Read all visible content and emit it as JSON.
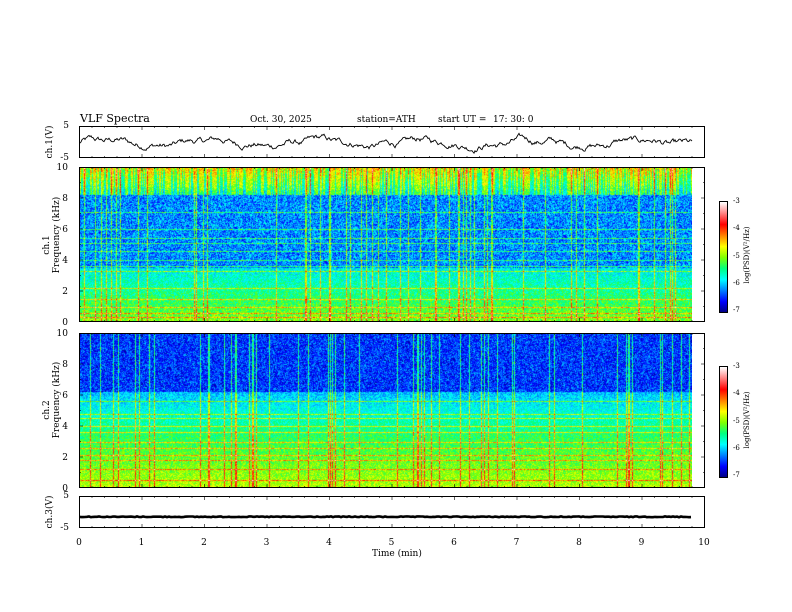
{
  "header": {
    "title": "VLF  Spectra",
    "date": "Oct. 30, 2025",
    "station": "station=ATH",
    "start_label": "start  UT  =",
    "start_time": "17: 30: 0"
  },
  "chart_data": [
    {
      "id": "ch1-waveform",
      "type": "line",
      "ylabel": "ch.1(V)",
      "ylim": [
        -5,
        5
      ],
      "yticks": [
        "5",
        "-5"
      ],
      "description_values": "noisy waveform roughly between -2 and 2 V",
      "x_range_min": [
        0,
        9.8
      ]
    },
    {
      "id": "ch1-spectrogram",
      "type": "heatmap",
      "ylabel": "ch.1\nFrequency  (kHz)",
      "ylabel_lines": [
        "ch.1",
        "Frequency  (kHz)"
      ],
      "ylim": [
        0,
        10
      ],
      "yticks": [
        "0",
        "2",
        "4",
        "6",
        "8",
        "10"
      ],
      "x_range_min": [
        0,
        9.8
      ],
      "bands_khz": [
        0.3,
        0.6,
        1.0,
        1.5,
        2.2,
        3.3,
        3.6,
        4.0,
        4.6,
        5.1,
        5.4,
        6.0,
        7.1
      ],
      "colorbar": {
        "label": "log(PSD)(V²/Hz)",
        "ticks": [
          "-3",
          "-4",
          "-5",
          "-6",
          "-7"
        ],
        "range": [
          -7,
          -3
        ]
      }
    },
    {
      "id": "ch2-spectrogram",
      "type": "heatmap",
      "ylabel_lines": [
        "ch.2",
        "Frequency  (kHz)"
      ],
      "ylim": [
        0,
        10
      ],
      "yticks": [
        "0",
        "2",
        "4",
        "6",
        "8",
        "10"
      ],
      "x_range_min": [
        0,
        9.8
      ],
      "bands_khz": [
        0.5,
        1.2,
        1.8,
        2.1,
        2.6,
        3.0,
        3.6,
        4.0,
        4.5,
        4.8,
        5.6
      ],
      "colorbar": {
        "label": "log(PSD)(V²/Hz)",
        "ticks": [
          "-3",
          "-4",
          "-5",
          "-6",
          "-7"
        ],
        "range": [
          -7,
          -3
        ]
      }
    },
    {
      "id": "ch3-waveform",
      "type": "line",
      "ylabel": "ch.3(V)",
      "ylim": [
        -5,
        5
      ],
      "yticks": [
        "5",
        "-5"
      ],
      "constant_value_v": -1.5,
      "x_range_min": [
        0,
        9.8
      ]
    }
  ],
  "xaxis": {
    "label": "Time  (min)",
    "ticks": [
      "0",
      "1",
      "2",
      "3",
      "4",
      "5",
      "6",
      "7",
      "8",
      "9",
      "10"
    ],
    "range": [
      0,
      10
    ]
  },
  "colors": {
    "cmap": [
      "#000080",
      "#0000ff",
      "#0080ff",
      "#00ffff",
      "#00ff80",
      "#80ff00",
      "#ffff00",
      "#ff8000",
      "#ff0000",
      "#ff8080",
      "#ffffff"
    ],
    "line": "#000000"
  }
}
